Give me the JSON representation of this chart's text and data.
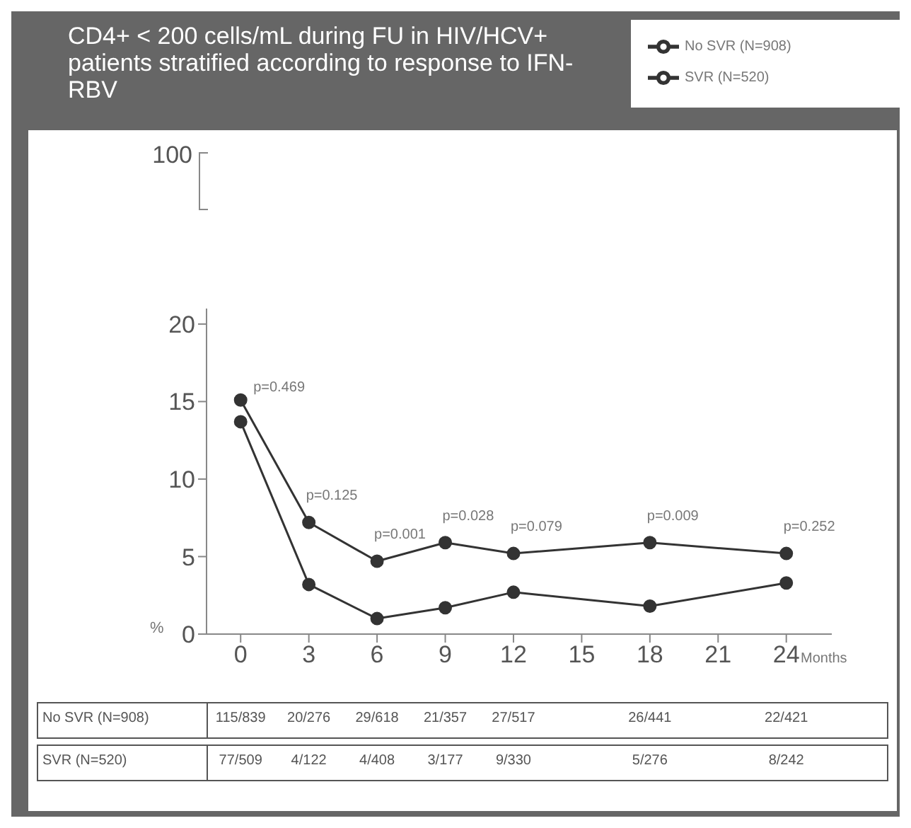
{
  "chart_data": {
    "type": "line",
    "title": "CD4+ < 200 cells/mL during FU in HIV/HCV+ patients stratified according to response to IFN-RBV",
    "xlabel": "Months",
    "ylabel": "%",
    "x": [
      0,
      3,
      6,
      9,
      12,
      18,
      24
    ],
    "series": [
      {
        "name": "No SVR (N=908)",
        "color": "#333333",
        "values": [
          15.1,
          7.2,
          4.7,
          5.9,
          5.2,
          5.9,
          5.2
        ]
      },
      {
        "name": "SVR (N=520)",
        "color": "#333333",
        "values": [
          13.7,
          3.2,
          1.0,
          1.7,
          2.7,
          1.8,
          3.3
        ]
      }
    ],
    "annotations": [
      "100",
      {
        "text": "p=0.469",
        "x": 0,
        "y": 15.1
      },
      {
        "text": "p=0.125",
        "x": 3,
        "y": 7.2
      },
      {
        "text": "p=0.001",
        "x": 6,
        "y": 4.7
      },
      {
        "text": "p=0.028",
        "x": 9,
        "y": 5.9
      },
      {
        "text": "p=0.079",
        "x": 12,
        "y": 5.2
      },
      {
        "text": "p=0.009",
        "x": 18,
        "y": 5.9
      },
      {
        "text": "p=0.252",
        "x": 24,
        "y": 5.2
      },
      "No SVR (N=908)",
      "115/839",
      "20/276",
      "29/618",
      "21/357",
      "27/517",
      "26/441",
      "22/421",
      "SVR (N=520)",
      "77/509",
      "4/122",
      "4/408",
      "3/177",
      "9/330",
      "5/276",
      "8/242"
    ],
    "xlim": [
      -1.5,
      26
    ],
    "xticks": [
      0,
      3,
      6,
      9,
      12,
      15,
      18,
      21,
      24
    ],
    "ylim": [
      0,
      21
    ],
    "yticks": [
      0,
      5,
      10,
      15,
      20
    ],
    "legend": "top right",
    "marker": "circle",
    "line_style": "solid"
  }
}
